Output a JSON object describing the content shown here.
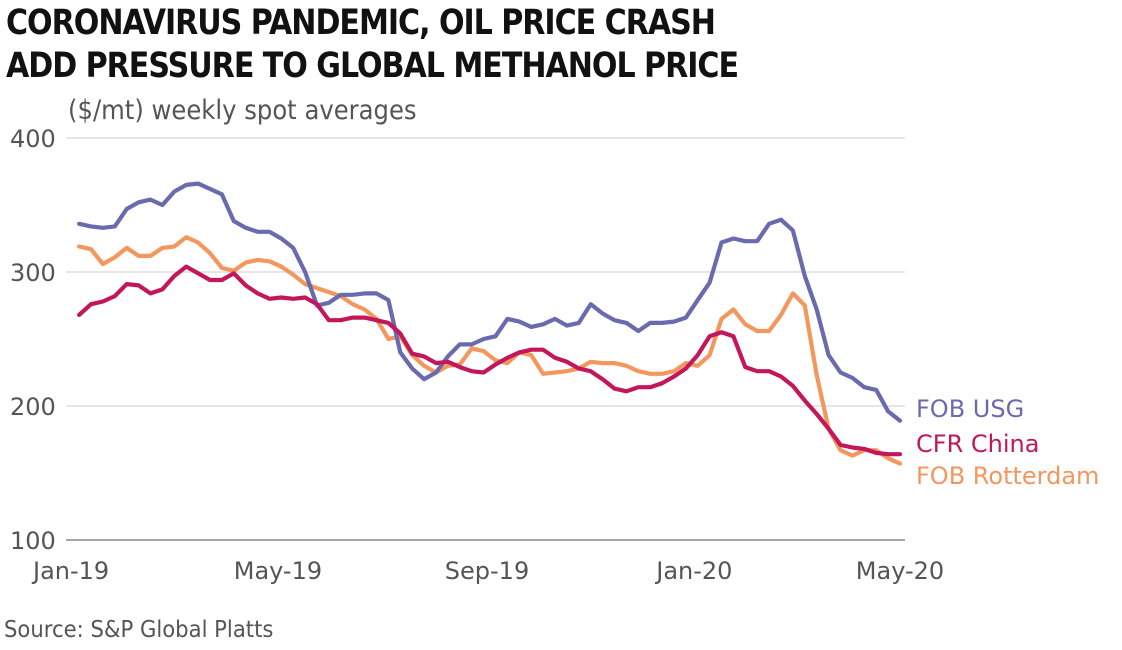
{
  "title_line1": "CORONAVIRUS PANDEMIC, OIL PRICE CRASH",
  "title_line2": "ADD PRESSURE TO GLOBAL METHANOL PRICE",
  "subtitle": "($/mt) weekly spot averages",
  "source": "Source: S&P Global Platts",
  "chart_data": {
    "type": "line",
    "title": "CORONAVIRUS PANDEMIC, OIL PRICE CRASH ADD PRESSURE TO GLOBAL METHANOL PRICE",
    "ylabel": "($/mt) weekly spot averages",
    "xlabel": "",
    "ylim": [
      100,
      400
    ],
    "yticks": [
      100,
      200,
      300,
      400
    ],
    "grid": true,
    "legend": "right, inline at line ends",
    "x": [
      "2019-01-04",
      "2019-01-11",
      "2019-01-18",
      "2019-01-25",
      "2019-02-01",
      "2019-02-08",
      "2019-02-15",
      "2019-02-22",
      "2019-03-01",
      "2019-03-08",
      "2019-03-15",
      "2019-03-22",
      "2019-03-29",
      "2019-04-05",
      "2019-04-12",
      "2019-04-19",
      "2019-04-26",
      "2019-05-03",
      "2019-05-10",
      "2019-05-17",
      "2019-05-24",
      "2019-05-31",
      "2019-06-07",
      "2019-06-14",
      "2019-06-21",
      "2019-06-28",
      "2019-07-05",
      "2019-07-12",
      "2019-07-19",
      "2019-07-26",
      "2019-08-02",
      "2019-08-09",
      "2019-08-16",
      "2019-08-23",
      "2019-08-30",
      "2019-09-06",
      "2019-09-13",
      "2019-09-20",
      "2019-09-27",
      "2019-10-04",
      "2019-10-11",
      "2019-10-18",
      "2019-10-25",
      "2019-11-01",
      "2019-11-08",
      "2019-11-15",
      "2019-11-22",
      "2019-11-29",
      "2019-12-06",
      "2019-12-13",
      "2019-12-20",
      "2019-12-27",
      "2020-01-03",
      "2020-01-10",
      "2020-01-17",
      "2020-01-24",
      "2020-01-31",
      "2020-02-07",
      "2020-02-14",
      "2020-02-21",
      "2020-02-28",
      "2020-03-06",
      "2020-03-13",
      "2020-03-20",
      "2020-03-27",
      "2020-04-03",
      "2020-04-10",
      "2020-04-17",
      "2020-04-24",
      "2020-05-01"
    ],
    "xticks": [
      {
        "label": "Jan-19",
        "date": "2019-01-01"
      },
      {
        "label": "May-19",
        "date": "2019-05-01"
      },
      {
        "label": "Sep-19",
        "date": "2019-09-01"
      },
      {
        "label": "Jan-20",
        "date": "2020-01-01"
      },
      {
        "label": "May-20",
        "date": "2020-05-01"
      }
    ],
    "series": [
      {
        "name": "FOB USG",
        "color": "#6a6aae",
        "values": [
          336,
          334,
          333,
          334,
          347,
          352,
          354,
          350,
          360,
          365,
          366,
          362,
          358,
          338,
          333,
          330,
          330,
          325,
          318,
          300,
          275,
          277,
          283,
          283,
          284,
          284,
          279,
          240,
          228,
          220,
          225,
          237,
          246,
          246,
          250,
          252,
          265,
          263,
          259,
          261,
          265,
          260,
          262,
          276,
          269,
          264,
          262,
          256,
          262,
          262,
          263,
          266,
          279,
          292,
          322,
          325,
          323,
          323,
          336,
          339,
          331,
          297,
          272,
          238,
          225,
          221,
          214,
          212,
          196,
          189
        ]
      },
      {
        "name": "CFR China",
        "color": "#c2185b",
        "values": [
          268,
          276,
          278,
          282,
          291,
          290,
          284,
          287,
          297,
          304,
          299,
          294,
          294,
          299,
          290,
          284,
          280,
          281,
          280,
          281,
          276,
          264,
          264,
          266,
          266,
          264,
          262,
          254,
          239,
          237,
          232,
          233,
          229,
          226,
          225,
          231,
          236,
          240,
          242,
          242,
          236,
          233,
          228,
          226,
          220,
          213,
          211,
          214,
          214,
          217,
          222,
          228,
          238,
          252,
          255,
          252,
          229,
          226,
          226,
          222,
          215,
          204,
          194,
          183,
          171,
          169,
          168,
          165,
          164,
          164
        ]
      },
      {
        "name": "FOB Rotterdam",
        "color": "#f4975f",
        "values": [
          319,
          317,
          306,
          311,
          318,
          312,
          312,
          318,
          319,
          326,
          322,
          314,
          303,
          301,
          307,
          309,
          308,
          304,
          298,
          291,
          288,
          285,
          282,
          276,
          272,
          265,
          250,
          252,
          238,
          230,
          225,
          230,
          231,
          243,
          241,
          234,
          232,
          240,
          238,
          224,
          225,
          226,
          228,
          233,
          232,
          232,
          230,
          226,
          224,
          224,
          226,
          232,
          230,
          238,
          265,
          272,
          261,
          256,
          256,
          268,
          284,
          275,
          223,
          183,
          167,
          163,
          167,
          167,
          161,
          157
        ]
      }
    ]
  }
}
